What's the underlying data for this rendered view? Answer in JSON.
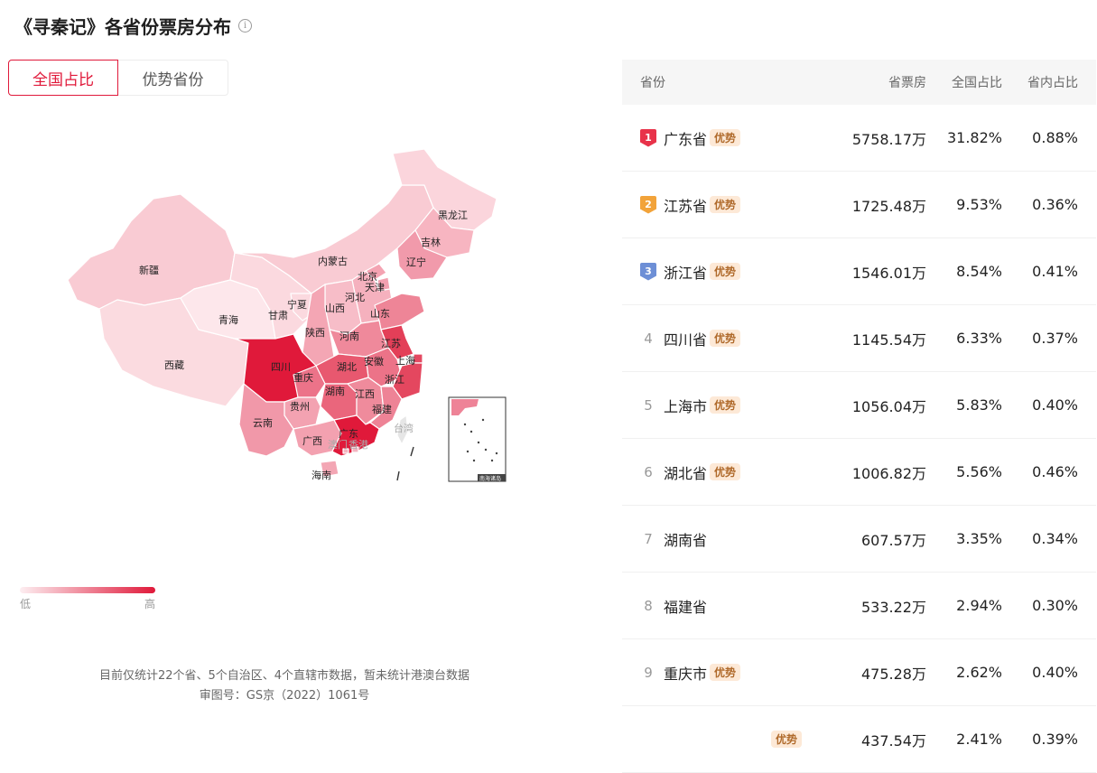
{
  "page": {
    "title": "《寻秦记》各省份票房分布",
    "info_icon": "info-icon"
  },
  "tabs": [
    {
      "label": "全国占比",
      "active": true
    },
    {
      "label": "优势省份",
      "active": false
    }
  ],
  "map": {
    "labels": {
      "xinjiang": "新疆",
      "xizang": "西藏",
      "qinghai": "青海",
      "gansu": "甘肃",
      "neimenggu": "内蒙古",
      "heilongjiang": "黑龙江",
      "jilin": "吉林",
      "liaoning": "辽宁",
      "beijing": "北京",
      "tianjin": "天津",
      "hebei": "河北",
      "shanxi": "山西",
      "ningxia": "宁夏",
      "shaanxi": "陕西",
      "henan": "河南",
      "shandong": "山东",
      "jiangsu": "江苏",
      "shanghai": "上海",
      "anhui": "安徽",
      "zhejiang": "浙江",
      "hubei": "湖北",
      "sichuan": "四川",
      "chongqing": "重庆",
      "hunan": "湖南",
      "jiangxi": "江西",
      "guizhou": "贵州",
      "fujian": "福建",
      "yunnan": "云南",
      "guangxi": "广西",
      "guangdong": "广东",
      "xianggang": "香港",
      "aomen": "澳门",
      "taiwan": "台湾",
      "hainan": "海南"
    },
    "inset_label": "南海诸岛",
    "colors": {
      "low": "#fdeef1",
      "high": "#e0193a"
    }
  },
  "legend": {
    "low": "低",
    "high": "高"
  },
  "footnote": {
    "line1": "目前仅统计22个省、5个自治区、4个直辖市数据，暂未统计港澳台数据",
    "line2": "审图号：GS京（2022）1061号"
  },
  "table": {
    "headers": {
      "province": "省份",
      "box_office": "省票房",
      "national_share": "全国占比",
      "province_share": "省内占比"
    },
    "badge_label": "优势",
    "medal_colors": [
      "#e8334a",
      "#f2a33a",
      "#6d8fd6"
    ],
    "rows": [
      {
        "rank": "1",
        "name": "广东省",
        "advantage": true,
        "box": "5758.17万",
        "nat": "31.82%",
        "pct": "0.88%"
      },
      {
        "rank": "2",
        "name": "江苏省",
        "advantage": true,
        "box": "1725.48万",
        "nat": "9.53%",
        "pct": "0.36%"
      },
      {
        "rank": "3",
        "name": "浙江省",
        "advantage": true,
        "box": "1546.01万",
        "nat": "8.54%",
        "pct": "0.41%"
      },
      {
        "rank": "4",
        "name": "四川省",
        "advantage": true,
        "box": "1145.54万",
        "nat": "6.33%",
        "pct": "0.37%"
      },
      {
        "rank": "5",
        "name": "上海市",
        "advantage": true,
        "box": "1056.04万",
        "nat": "5.83%",
        "pct": "0.40%"
      },
      {
        "rank": "6",
        "name": "湖北省",
        "advantage": true,
        "box": "1006.82万",
        "nat": "5.56%",
        "pct": "0.46%"
      },
      {
        "rank": "7",
        "name": "湖南省",
        "advantage": false,
        "box": "607.57万",
        "nat": "3.35%",
        "pct": "0.34%"
      },
      {
        "rank": "8",
        "name": "福建省",
        "advantage": false,
        "box": "533.22万",
        "nat": "2.94%",
        "pct": "0.30%"
      },
      {
        "rank": "9",
        "name": "重庆市",
        "advantage": true,
        "box": "475.28万",
        "nat": "2.62%",
        "pct": "0.40%"
      },
      {
        "rank": "",
        "name": "",
        "advantage": true,
        "box": "437.54万",
        "nat": "2.41%",
        "pct": "0.39%"
      }
    ]
  }
}
